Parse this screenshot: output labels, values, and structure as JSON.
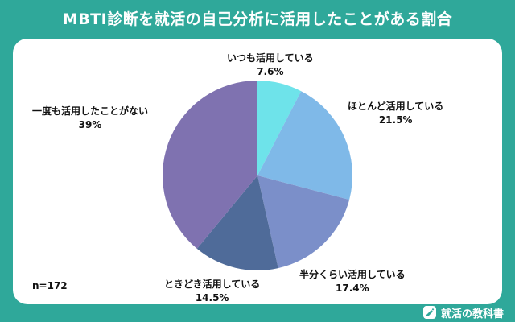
{
  "header": {
    "title": "MBTI診断を就活の自己分析に活用したことがある割合"
  },
  "chart_data": {
    "type": "pie",
    "title": "MBTI診断を就活の自己分析に活用したことがある割合",
    "slices": [
      {
        "label": "いつも活用している",
        "value": 7.6,
        "display": "7.6%",
        "color": "#6ee3ea"
      },
      {
        "label": "ほとんど活用している",
        "value": 21.5,
        "display": "21.5%",
        "color": "#7fb9e8"
      },
      {
        "label": "半分くらい活用している",
        "value": 17.4,
        "display": "17.4%",
        "color": "#7b8fc9"
      },
      {
        "label": "ときどき活用している",
        "value": 14.5,
        "display": "14.5%",
        "color": "#4f6b99"
      },
      {
        "label": "一度も活用したことがない",
        "value": 39,
        "display": "39%",
        "color": "#7f72b0"
      }
    ]
  },
  "sample_size": "n=172",
  "footer": {
    "brand": "就活の教科書"
  }
}
